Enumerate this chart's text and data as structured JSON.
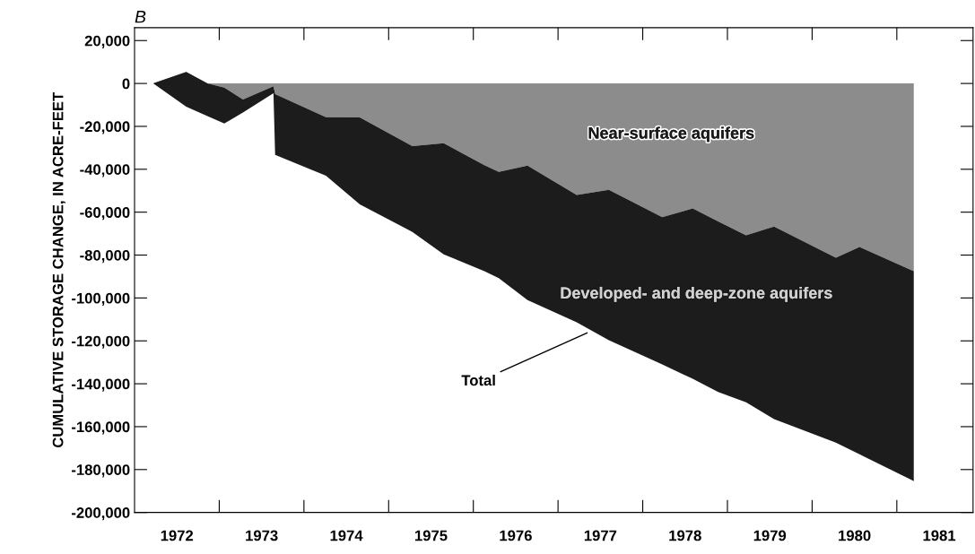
{
  "chart_data": {
    "type": "area",
    "stacked": true,
    "title": "B",
    "ylabel": "CUMULATIVE STORAGE CHANGE, IN ACRE-FEET",
    "x": [
      1972.22,
      1972.61,
      1972.86,
      1973.06,
      1973.28,
      1973.64,
      1973.66,
      1974.26,
      1974.66,
      1975.28,
      1975.65,
      1976.13,
      1976.3,
      1976.64,
      1977.22,
      1977.6,
      1978.23,
      1978.59,
      1978.89,
      1979.22,
      1979.55,
      1980.28,
      1980.56,
      1981.2
    ],
    "series": [
      {
        "name": "Near-surface aquifers",
        "color": "#8c8c8c",
        "values": [
          0,
          5400,
          0,
          -1900,
          -7500,
          -1300,
          -5000,
          -15700,
          -15800,
          -29200,
          -27800,
          -38100,
          -41200,
          -38300,
          -52000,
          -49600,
          -62300,
          -58300,
          -64300,
          -70800,
          -66700,
          -81200,
          -76200,
          -87500
        ]
      },
      {
        "name": "Developed- and deep-zone aquifers",
        "color": "#1c1c1c",
        "values": [
          0,
          -16200,
          -15200,
          -16800,
          -6000,
          -3300,
          -28300,
          -27300,
          -40600,
          -40000,
          -51900,
          -49400,
          -49600,
          -62700,
          -59300,
          -70100,
          -68700,
          -79400,
          -79500,
          -77800,
          -89800,
          -86200,
          -96700,
          -97900
        ]
      }
    ],
    "annotations": [
      {
        "text": "Total",
        "x": 1977.37,
        "y": -115800
      }
    ],
    "xlim": [
      1972,
      1981.9
    ],
    "xticks": [
      {
        "value": 1972.5,
        "label": "1972"
      },
      {
        "value": 1973,
        "label": null
      },
      {
        "value": 1973.5,
        "label": "1973"
      },
      {
        "value": 1974,
        "label": null
      },
      {
        "value": 1974.5,
        "label": "1974"
      },
      {
        "value": 1975,
        "label": null
      },
      {
        "value": 1975.5,
        "label": "1975"
      },
      {
        "value": 1976,
        "label": null
      },
      {
        "value": 1976.5,
        "label": "1976"
      },
      {
        "value": 1977,
        "label": null
      },
      {
        "value": 1977.5,
        "label": "1977"
      },
      {
        "value": 1978,
        "label": null
      },
      {
        "value": 1978.5,
        "label": "1978"
      },
      {
        "value": 1979,
        "label": null
      },
      {
        "value": 1979.5,
        "label": "1979"
      },
      {
        "value": 1980,
        "label": null
      },
      {
        "value": 1980.5,
        "label": "1980"
      },
      {
        "value": 1981,
        "label": null
      },
      {
        "value": 1981.5,
        "label": "1981"
      }
    ],
    "ylim": [
      -200000,
      26000
    ],
    "yticks": [
      {
        "value": 20000,
        "label": "20,000"
      },
      {
        "value": 0,
        "label": "0"
      },
      {
        "value": -20000,
        "label": "-20,000"
      },
      {
        "value": -40000,
        "label": "-40,000"
      },
      {
        "value": -60000,
        "label": "-60,000"
      },
      {
        "value": -80000,
        "label": "-80,000"
      },
      {
        "value": -100000,
        "label": "-100,000"
      },
      {
        "value": -120000,
        "label": "-120,000"
      },
      {
        "value": -140000,
        "label": "-140,000"
      },
      {
        "value": -160000,
        "label": "-160,000"
      },
      {
        "value": -180000,
        "label": "-180,000"
      },
      {
        "value": -200000,
        "label": "-200,000"
      }
    ],
    "grid": false,
    "legend": false
  }
}
